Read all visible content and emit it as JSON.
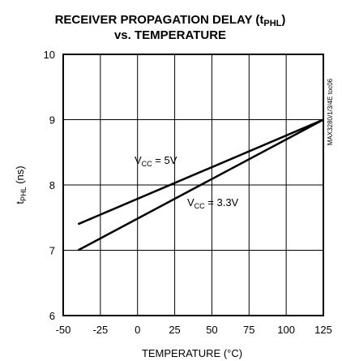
{
  "chart_data": {
    "type": "line",
    "title_line1": "RECEIVER PROPAGATION DELAY (t",
    "title_sub": "PHL",
    "title_line1_end": ")",
    "title_line2": "vs. TEMPERATURE",
    "xlabel": "TEMPERATURE (°C)",
    "ylabel_main": "t",
    "ylabel_sub": "PHL",
    "ylabel_end": " (ns)",
    "side_code": "MAX3280/1/3/4E toc06",
    "xlim": [
      -50,
      125
    ],
    "ylim": [
      6,
      10
    ],
    "xticks": [
      -50,
      -25,
      0,
      25,
      50,
      75,
      100,
      125
    ],
    "yticks": [
      6,
      7,
      8,
      9,
      10
    ],
    "grid": true,
    "series": [
      {
        "name": "VCC = 5V",
        "label_main": "V",
        "label_sub": "CC",
        "label_end": " = 5V",
        "x": [
          -40,
          125
        ],
        "y": [
          7.4,
          9.0
        ]
      },
      {
        "name": "VCC = 3.3V",
        "label_main": "V",
        "label_sub": "CC",
        "label_end": " = 3.3V",
        "x": [
          -40,
          125
        ],
        "y": [
          7.0,
          9.0
        ]
      }
    ]
  }
}
